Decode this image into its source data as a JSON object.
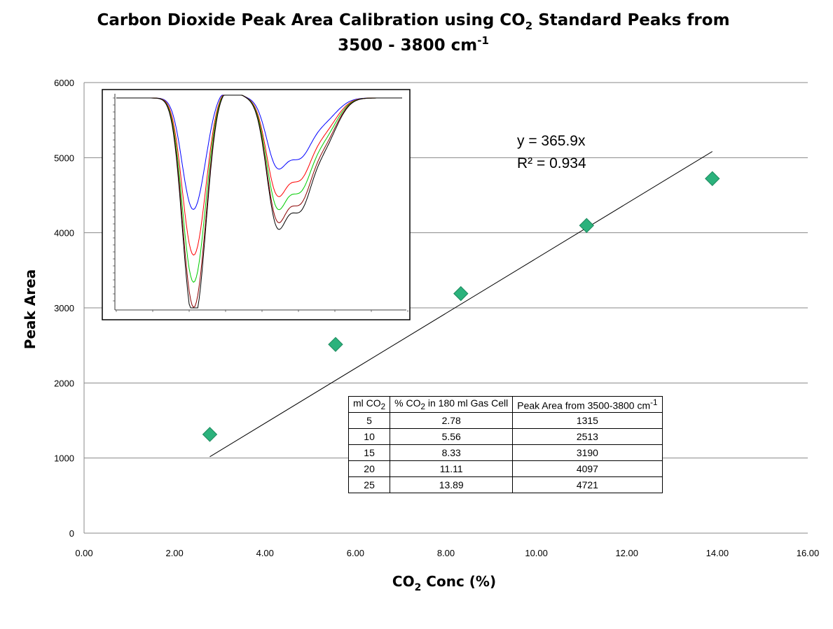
{
  "chart_data": {
    "type": "scatter",
    "title_line1_pre": "Carbon Dioxide Peak Area Calibration using CO",
    "title_line1_sub": "2",
    "title_line1_post": " Standard Peaks from",
    "title_line2_pre": "3500 - 3800 cm",
    "title_line2_sup": "-1",
    "xlabel_pre": "CO",
    "xlabel_sub": "2",
    "xlabel_post": " Conc (%)",
    "ylabel": "Peak Area",
    "xlim": [
      0,
      16
    ],
    "ylim": [
      0,
      6000
    ],
    "x_ticks": [
      "0.00",
      "2.00",
      "4.00",
      "6.00",
      "8.00",
      "10.00",
      "12.00",
      "14.00",
      "16.00"
    ],
    "y_ticks": [
      "0",
      "1000",
      "2000",
      "3000",
      "4000",
      "5000",
      "6000"
    ],
    "grid": "horizontal",
    "marker_color": "#2bb27c",
    "series": [
      {
        "x": [
          2.78,
          5.56,
          8.33,
          11.11,
          13.89
        ],
        "y": [
          1315,
          2513,
          3190,
          4097,
          4721
        ]
      }
    ],
    "trendline": {
      "slope": 365.9,
      "x_range": [
        2.78,
        13.89
      ]
    },
    "equation": "y = 365.9x",
    "r_squared_label": "R² = 0.934"
  },
  "table": {
    "headers": [
      {
        "pre": "ml CO",
        "sub": "2",
        "post": "",
        "sup": ""
      },
      {
        "pre": "% CO",
        "sub": "2",
        "post": " in 180 ml Gas Cell",
        "sup": ""
      },
      {
        "pre": "Peak Area from 3500-3800 cm",
        "sub": "",
        "post": "",
        "sup": "-1"
      }
    ],
    "rows": [
      [
        "5",
        "2.78",
        "1315"
      ],
      [
        "10",
        "5.56",
        "2513"
      ],
      [
        "15",
        "8.33",
        "3190"
      ],
      [
        "20",
        "11.11",
        "4097"
      ],
      [
        "25",
        "13.89",
        "4721"
      ]
    ]
  },
  "inset": {
    "spectra_colors": [
      "#0000ff",
      "#ff0000",
      "#00cc00",
      "#8b0000",
      "#000000"
    ]
  }
}
